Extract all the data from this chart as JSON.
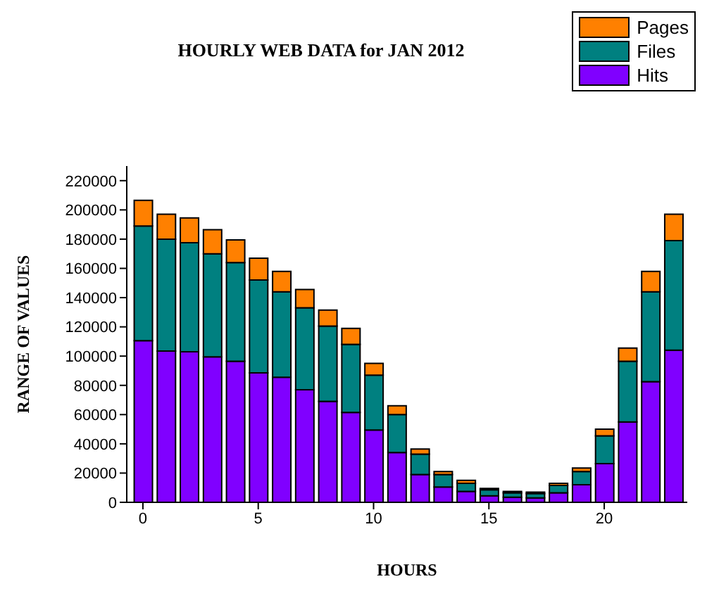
{
  "chart_data": {
    "type": "bar",
    "title": "HOURLY WEB DATA for JAN 2012",
    "xlabel": "HOURS",
    "ylabel": "RANGE OF VALUES",
    "x": [
      0,
      1,
      2,
      3,
      4,
      5,
      6,
      7,
      8,
      9,
      10,
      11,
      12,
      13,
      14,
      15,
      16,
      17,
      18,
      19,
      20,
      21,
      22,
      23
    ],
    "stacked": true,
    "series": [
      {
        "name": "Hits",
        "color": "#8000ff",
        "values": [
          110500,
          103500,
          103000,
          99500,
          96500,
          88500,
          85500,
          77000,
          69000,
          61500,
          49500,
          34000,
          19000,
          10500,
          7500,
          4500,
          3500,
          3000,
          6500,
          12000,
          26500,
          55000,
          82500,
          104000
        ]
      },
      {
        "name": "Files",
        "color": "#008080",
        "values": [
          78500,
          76500,
          74500,
          70500,
          67500,
          63500,
          58500,
          56000,
          51500,
          46500,
          37500,
          26000,
          14000,
          8500,
          5500,
          4000,
          3000,
          3000,
          5000,
          9000,
          19000,
          41500,
          61500,
          75000
        ]
      },
      {
        "name": "Pages",
        "color": "#ff8000",
        "values": [
          17500,
          17000,
          17000,
          16500,
          15500,
          15000,
          14000,
          12500,
          11000,
          11000,
          8000,
          6000,
          3500,
          2000,
          2000,
          1000,
          1000,
          1000,
          1500,
          2500,
          4500,
          9000,
          14000,
          18000
        ]
      }
    ],
    "xlim": [
      -0.7,
      23.6
    ],
    "xticks": [
      0,
      5,
      10,
      15,
      20
    ],
    "ylim": [
      0,
      230000
    ],
    "yticks": [
      0,
      20000,
      40000,
      60000,
      80000,
      100000,
      120000,
      140000,
      160000,
      180000,
      200000,
      220000
    ],
    "grid": false,
    "legend": "top right"
  }
}
